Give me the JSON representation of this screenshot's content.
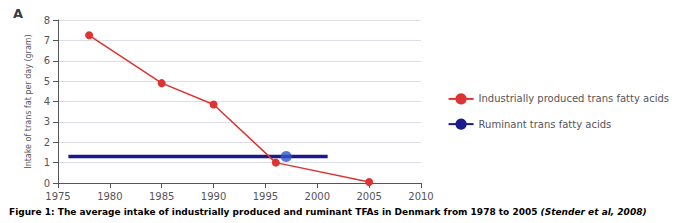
{
  "chart_data": {
    "type": "line",
    "title": "A",
    "ylabel": "Intake of trans fat per day (gram)",
    "annotations": [
      "Figure 1: The average intake of industrially produced and ruminant TFAs in Denmark from 1978 to 2005",
      "(Stender et al, 2008)"
    ],
    "series": [
      {
        "name": "Industrially produced trans fatty acids",
        "type": "line",
        "marker": "circle",
        "color": "#dd3333",
        "x": [
          1978,
          1985,
          1990,
          1996,
          2005
        ],
        "values": [
          7.25,
          4.9,
          3.85,
          1.0,
          0.05
        ]
      },
      {
        "name": "Ruminant trans fatty acids",
        "type": "line",
        "marker": "none",
        "color": "#1a1a8c",
        "x": [
          1976,
          2001
        ],
        "values": [
          1.3,
          1.3
        ]
      },
      {
        "type": "scatter",
        "marker": "circle",
        "color": "#3355cc",
        "x": [
          1997
        ],
        "values": [
          1.3
        ]
      }
    ],
    "xlim": [
      1975,
      2010
    ],
    "xticks": [
      1975,
      1980,
      1985,
      1990,
      1995,
      2000,
      2005,
      2010
    ],
    "ylim": [
      0,
      8
    ],
    "yticks": [
      0,
      1,
      2,
      3,
      4,
      5,
      6,
      7,
      8
    ],
    "grid": true,
    "legend": "right"
  }
}
